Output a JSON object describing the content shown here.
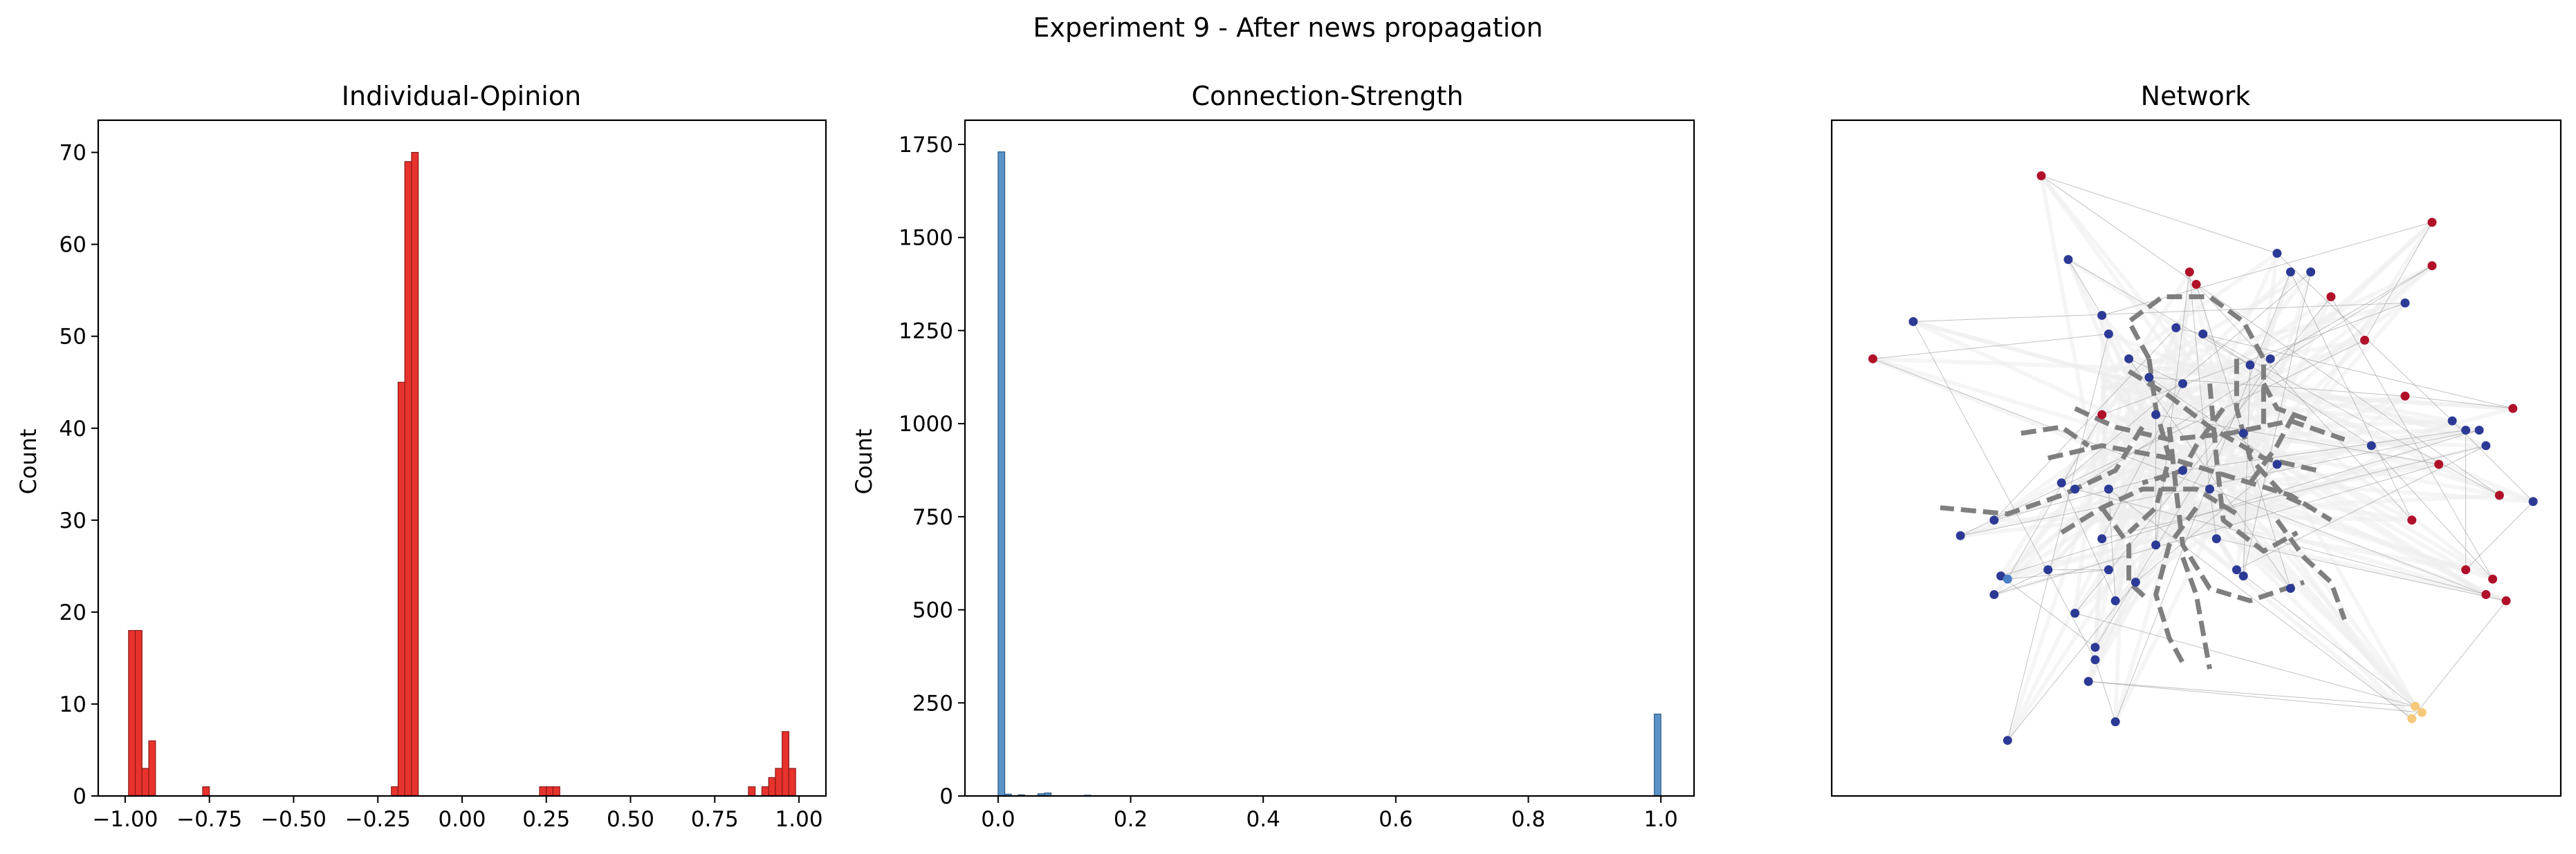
{
  "figure": {
    "suptitle": "Experiment 9 - After news propagation"
  },
  "colors": {
    "opinion_bar": "#e8322d",
    "opinion_edge": "#8b1a17",
    "strength_bar": "#5b93c7",
    "strength_edge": "#2b5c8a",
    "node_blue": "#2c3a96",
    "node_red": "#b0102a",
    "node_yellow": "#f5c87a",
    "node_light": "#cfeee6",
    "edge_dash": "#7f7f7f",
    "edge_cloud": "#eeeeee"
  },
  "chart_data": [
    {
      "type": "bar",
      "title": "Individual-Opinion",
      "xlabel": "",
      "ylabel": "Count",
      "xlim": [
        -1.08,
        1.08
      ],
      "ylim": [
        0,
        73.5
      ],
      "xticks": [
        -1.0,
        -0.75,
        -0.5,
        -0.25,
        0.0,
        0.25,
        0.5,
        0.75,
        1.0
      ],
      "xtick_labels": [
        "−1.00",
        "−0.75",
        "−0.50",
        "−0.25",
        "0.00",
        "0.25",
        "0.50",
        "0.75",
        "1.00"
      ],
      "yticks": [
        0,
        10,
        20,
        30,
        40,
        50,
        60,
        70
      ],
      "ytick_labels": [
        "0",
        "10",
        "20",
        "30",
        "40",
        "50",
        "60",
        "70"
      ],
      "bin_width": 0.02,
      "bins": [
        {
          "x0": -0.99,
          "value": 18
        },
        {
          "x0": -0.97,
          "value": 18
        },
        {
          "x0": -0.95,
          "value": 3
        },
        {
          "x0": -0.93,
          "value": 6
        },
        {
          "x0": -0.77,
          "value": 1
        },
        {
          "x0": -0.21,
          "value": 1
        },
        {
          "x0": -0.19,
          "value": 45
        },
        {
          "x0": -0.17,
          "value": 69
        },
        {
          "x0": -0.15,
          "value": 70
        },
        {
          "x0": 0.23,
          "value": 1
        },
        {
          "x0": 0.25,
          "value": 1
        },
        {
          "x0": 0.27,
          "value": 1
        },
        {
          "x0": 0.85,
          "value": 1
        },
        {
          "x0": 0.89,
          "value": 1
        },
        {
          "x0": 0.91,
          "value": 2
        },
        {
          "x0": 0.93,
          "value": 3
        },
        {
          "x0": 0.95,
          "value": 7
        },
        {
          "x0": 0.97,
          "value": 3
        }
      ]
    },
    {
      "type": "bar",
      "title": "Connection-Strength",
      "xlabel": "",
      "ylabel": "Count",
      "xlim": [
        -0.05,
        1.05
      ],
      "ylim": [
        0,
        1815
      ],
      "xticks": [
        0.0,
        0.2,
        0.4,
        0.6,
        0.8,
        1.0
      ],
      "xtick_labels": [
        "0.0",
        "0.2",
        "0.4",
        "0.6",
        "0.8",
        "1.0"
      ],
      "yticks": [
        0,
        250,
        500,
        750,
        1000,
        1250,
        1500,
        1750
      ],
      "ytick_labels": [
        "0",
        "250",
        "500",
        "750",
        "1000",
        "1250",
        "1500",
        "1750"
      ],
      "bin_width": 0.01,
      "bins": [
        {
          "x0": 0.0,
          "value": 1730
        },
        {
          "x0": 0.01,
          "value": 5
        },
        {
          "x0": 0.03,
          "value": 3
        },
        {
          "x0": 0.06,
          "value": 6
        },
        {
          "x0": 0.07,
          "value": 8
        },
        {
          "x0": 0.13,
          "value": 2
        },
        {
          "x0": 0.99,
          "value": 220
        }
      ]
    },
    {
      "type": "scatter",
      "title": "Network",
      "xlim": [
        0,
        1
      ],
      "ylim": [
        0,
        1
      ],
      "nodes": [
        {
          "x": 0.27,
          "y": 0.955,
          "c": "red"
        },
        {
          "x": 0.85,
          "y": 0.88,
          "c": "red"
        },
        {
          "x": 0.31,
          "y": 0.82,
          "c": "blue"
        },
        {
          "x": 0.62,
          "y": 0.83,
          "c": "blue"
        },
        {
          "x": 0.64,
          "y": 0.8,
          "c": "blue"
        },
        {
          "x": 0.67,
          "y": 0.8,
          "c": "blue"
        },
        {
          "x": 0.49,
          "y": 0.8,
          "c": "red"
        },
        {
          "x": 0.5,
          "y": 0.78,
          "c": "red"
        },
        {
          "x": 0.08,
          "y": 0.72,
          "c": "blue"
        },
        {
          "x": 0.02,
          "y": 0.66,
          "c": "red"
        },
        {
          "x": 0.36,
          "y": 0.73,
          "c": "blue"
        },
        {
          "x": 0.37,
          "y": 0.7,
          "c": "blue"
        },
        {
          "x": 0.4,
          "y": 0.66,
          "c": "blue"
        },
        {
          "x": 0.47,
          "y": 0.71,
          "c": "blue"
        },
        {
          "x": 0.51,
          "y": 0.7,
          "c": "blue"
        },
        {
          "x": 0.43,
          "y": 0.63,
          "c": "blue"
        },
        {
          "x": 0.48,
          "y": 0.62,
          "c": "blue"
        },
        {
          "x": 0.58,
          "y": 0.65,
          "c": "blue"
        },
        {
          "x": 0.61,
          "y": 0.66,
          "c": "blue"
        },
        {
          "x": 0.7,
          "y": 0.76,
          "c": "red"
        },
        {
          "x": 0.75,
          "y": 0.69,
          "c": "red"
        },
        {
          "x": 0.81,
          "y": 0.75,
          "c": "blue"
        },
        {
          "x": 0.81,
          "y": 0.6,
          "c": "red"
        },
        {
          "x": 0.97,
          "y": 0.58,
          "c": "red"
        },
        {
          "x": 0.88,
          "y": 0.56,
          "c": "blue"
        },
        {
          "x": 0.9,
          "y": 0.545,
          "c": "blue"
        },
        {
          "x": 0.92,
          "y": 0.545,
          "c": "blue"
        },
        {
          "x": 0.93,
          "y": 0.52,
          "c": "blue"
        },
        {
          "x": 0.86,
          "y": 0.49,
          "c": "red"
        },
        {
          "x": 1.0,
          "y": 0.43,
          "c": "blue"
        },
        {
          "x": 0.95,
          "y": 0.44,
          "c": "red"
        },
        {
          "x": 0.82,
          "y": 0.4,
          "c": "red"
        },
        {
          "x": 0.76,
          "y": 0.52,
          "c": "blue"
        },
        {
          "x": 0.36,
          "y": 0.57,
          "c": "red"
        },
        {
          "x": 0.44,
          "y": 0.57,
          "c": "blue"
        },
        {
          "x": 0.57,
          "y": 0.54,
          "c": "blue"
        },
        {
          "x": 0.48,
          "y": 0.48,
          "c": "blue"
        },
        {
          "x": 0.62,
          "y": 0.49,
          "c": "blue"
        },
        {
          "x": 0.3,
          "y": 0.46,
          "c": "blue"
        },
        {
          "x": 0.32,
          "y": 0.45,
          "c": "blue"
        },
        {
          "x": 0.37,
          "y": 0.45,
          "c": "blue"
        },
        {
          "x": 0.52,
          "y": 0.45,
          "c": "blue"
        },
        {
          "x": 0.2,
          "y": 0.4,
          "c": "blue"
        },
        {
          "x": 0.15,
          "y": 0.375,
          "c": "blue"
        },
        {
          "x": 0.36,
          "y": 0.37,
          "c": "blue"
        },
        {
          "x": 0.44,
          "y": 0.36,
          "c": "blue"
        },
        {
          "x": 0.53,
          "y": 0.37,
          "c": "blue"
        },
        {
          "x": 0.28,
          "y": 0.32,
          "c": "blue"
        },
        {
          "x": 0.37,
          "y": 0.32,
          "c": "blue"
        },
        {
          "x": 0.41,
          "y": 0.3,
          "c": "blue"
        },
        {
          "x": 0.56,
          "y": 0.32,
          "c": "blue"
        },
        {
          "x": 0.57,
          "y": 0.31,
          "c": "blue"
        },
        {
          "x": 0.64,
          "y": 0.29,
          "c": "blue"
        },
        {
          "x": 0.32,
          "y": 0.25,
          "c": "blue"
        },
        {
          "x": 0.21,
          "y": 0.31,
          "c": "blue"
        },
        {
          "x": 0.22,
          "y": 0.305,
          "c": "lightblue"
        },
        {
          "x": 0.38,
          "y": 0.27,
          "c": "blue"
        },
        {
          "x": 0.2,
          "y": 0.28,
          "c": "blue"
        },
        {
          "x": 0.35,
          "y": 0.195,
          "c": "blue"
        },
        {
          "x": 0.35,
          "y": 0.175,
          "c": "blue"
        },
        {
          "x": 0.34,
          "y": 0.14,
          "c": "blue"
        },
        {
          "x": 0.38,
          "y": 0.075,
          "c": "blue"
        },
        {
          "x": 0.22,
          "y": 0.045,
          "c": "blue"
        },
        {
          "x": 0.85,
          "y": 0.81,
          "c": "red"
        },
        {
          "x": 0.9,
          "y": 0.32,
          "c": "red"
        },
        {
          "x": 0.94,
          "y": 0.305,
          "c": "red"
        },
        {
          "x": 0.93,
          "y": 0.28,
          "c": "red"
        },
        {
          "x": 0.96,
          "y": 0.27,
          "c": "red"
        },
        {
          "x": 0.825,
          "y": 0.1,
          "c": "yellow"
        },
        {
          "x": 0.835,
          "y": 0.09,
          "c": "yellow"
        },
        {
          "x": 0.82,
          "y": 0.08,
          "c": "yellow"
        }
      ],
      "edges": [
        {
          "path": [
            [
              0.42,
              0.55
            ],
            [
              0.38,
              0.48
            ],
            [
              0.3,
              0.44
            ],
            [
              0.22,
              0.41
            ],
            [
              0.12,
              0.42
            ]
          ]
        },
        {
          "path": [
            [
              0.43,
              0.66
            ],
            [
              0.4,
              0.72
            ],
            [
              0.45,
              0.76
            ],
            [
              0.52,
              0.76
            ],
            [
              0.57,
              0.72
            ],
            [
              0.6,
              0.66
            ],
            [
              0.6,
              0.55
            ]
          ]
        },
        {
          "path": [
            [
              0.4,
              0.64
            ],
            [
              0.46,
              0.6
            ],
            [
              0.52,
              0.55
            ],
            [
              0.6,
              0.5
            ],
            [
              0.68,
              0.48
            ]
          ]
        },
        {
          "path": [
            [
              0.32,
              0.58
            ],
            [
              0.38,
              0.55
            ],
            [
              0.46,
              0.53
            ],
            [
              0.55,
              0.54
            ],
            [
              0.64,
              0.56
            ],
            [
              0.72,
              0.53
            ]
          ]
        },
        {
          "path": [
            [
              0.28,
              0.5
            ],
            [
              0.36,
              0.52
            ],
            [
              0.46,
              0.5
            ],
            [
              0.55,
              0.47
            ],
            [
              0.64,
              0.44
            ],
            [
              0.7,
              0.4
            ]
          ]
        },
        {
          "path": [
            [
              0.46,
              0.55
            ],
            [
              0.47,
              0.45
            ],
            [
              0.48,
              0.36
            ],
            [
              0.52,
              0.29
            ],
            [
              0.58,
              0.27
            ],
            [
              0.66,
              0.3
            ]
          ]
        },
        {
          "path": [
            [
              0.5,
              0.42
            ],
            [
              0.46,
              0.36
            ],
            [
              0.44,
              0.28
            ],
            [
              0.46,
              0.21
            ],
            [
              0.48,
              0.17
            ]
          ]
        },
        {
          "path": [
            [
              0.52,
              0.62
            ],
            [
              0.53,
              0.5
            ],
            [
              0.54,
              0.4
            ],
            [
              0.6,
              0.35
            ],
            [
              0.65,
              0.38
            ]
          ]
        },
        {
          "path": [
            [
              0.3,
              0.38
            ],
            [
              0.36,
              0.42
            ],
            [
              0.42,
              0.45
            ],
            [
              0.5,
              0.45
            ],
            [
              0.56,
              0.41
            ]
          ]
        },
        {
          "path": [
            [
              0.56,
              0.66
            ],
            [
              0.56,
              0.58
            ],
            [
              0.58,
              0.5
            ],
            [
              0.63,
              0.44
            ],
            [
              0.67,
              0.42
            ]
          ]
        },
        {
          "path": [
            [
              0.43,
              0.66
            ],
            [
              0.44,
              0.58
            ],
            [
              0.46,
              0.5
            ],
            [
              0.44,
              0.42
            ],
            [
              0.4,
              0.38
            ]
          ]
        },
        {
          "path": [
            [
              0.62,
              0.4
            ],
            [
              0.66,
              0.34
            ],
            [
              0.7,
              0.3
            ],
            [
              0.72,
              0.24
            ]
          ]
        },
        {
          "path": [
            [
              0.36,
              0.42
            ],
            [
              0.4,
              0.36
            ],
            [
              0.4,
              0.3
            ],
            [
              0.43,
              0.27
            ]
          ]
        },
        {
          "path": [
            [
              0.48,
              0.34
            ],
            [
              0.5,
              0.28
            ],
            [
              0.51,
              0.22
            ],
            [
              0.52,
              0.16
            ]
          ]
        },
        {
          "path": [
            [
              0.54,
              0.58
            ],
            [
              0.5,
              0.52
            ],
            [
              0.48,
              0.48
            ],
            [
              0.42,
              0.46
            ]
          ]
        },
        {
          "path": [
            [
              0.58,
              0.46
            ],
            [
              0.62,
              0.52
            ],
            [
              0.65,
              0.58
            ]
          ]
        },
        {
          "path": [
            [
              0.24,
              0.54
            ],
            [
              0.3,
              0.55
            ],
            [
              0.34,
              0.52
            ]
          ]
        },
        {
          "path": [
            [
              0.6,
              0.62
            ],
            [
              0.62,
              0.58
            ],
            [
              0.67,
              0.56
            ]
          ]
        }
      ]
    }
  ]
}
